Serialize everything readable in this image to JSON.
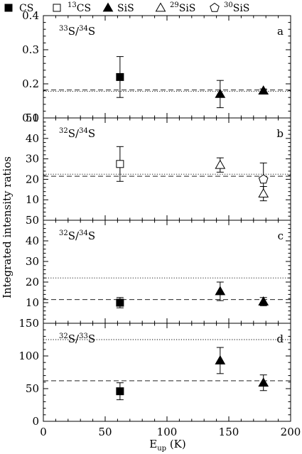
{
  "chart_data": [
    {
      "type": "scatter",
      "panel": "a",
      "label": "a",
      "ratio_num_mass": "33",
      "ratio_num_el": "S",
      "ratio_den_mass": "34",
      "ratio_den_el": "S",
      "xlim": [
        0,
        200
      ],
      "ylim": [
        0.1,
        0.4
      ],
      "yticks": [
        "0.1",
        "0.2",
        "0.3",
        "0.4"
      ],
      "reference_lines": [
        {
          "style": "dashed",
          "value": 0.182
        },
        {
          "style": "dotted",
          "value": 0.178
        }
      ],
      "points": [
        {
          "series": "CS",
          "x": 62,
          "y": 0.22,
          "err": 0.06
        },
        {
          "series": "SiS",
          "x": 143,
          "y": 0.17,
          "err": 0.04
        },
        {
          "series": "SiS",
          "x": 178,
          "y": 0.18,
          "err": 0.005
        }
      ]
    },
    {
      "type": "scatter",
      "panel": "b",
      "label": "b",
      "ratio_num_mass": "32",
      "ratio_num_el": "S",
      "ratio_den_mass": "34",
      "ratio_den_el": "S",
      "xlim": [
        0,
        200
      ],
      "ylim": [
        0,
        50
      ],
      "yticks": [
        "10",
        "20",
        "30",
        "40",
        "50"
      ],
      "reference_lines": [
        {
          "style": "dashed",
          "value": 21.5
        },
        {
          "style": "dotted",
          "value": 22.5
        }
      ],
      "points": [
        {
          "series": "13CS",
          "x": 62,
          "y": 27.5,
          "err": 8.5
        },
        {
          "series": "29SiS",
          "x": 143,
          "y": 27,
          "err": 3.5
        },
        {
          "series": "30SiS",
          "x": 178,
          "y": 20,
          "err": 8
        },
        {
          "series": "29SiS",
          "x": 178,
          "y": 13,
          "err": 3.5
        }
      ]
    },
    {
      "type": "scatter",
      "panel": "c",
      "label": "c",
      "ratio_num_mass": "32",
      "ratio_num_el": "S",
      "ratio_den_mass": "34",
      "ratio_den_el": "S",
      "xlim": [
        0,
        200
      ],
      "ylim": [
        0,
        50
      ],
      "yticks": [
        "10",
        "20",
        "30",
        "40",
        "50"
      ],
      "reference_lines": [
        {
          "style": "dashed",
          "value": 11.5
        },
        {
          "style": "dotted",
          "value": 22
        }
      ],
      "points": [
        {
          "series": "CS",
          "x": 62,
          "y": 10,
          "err": 2.5
        },
        {
          "series": "SiS",
          "x": 143,
          "y": 15.5,
          "err": 4.5
        },
        {
          "series": "SiS",
          "x": 178,
          "y": 10.5,
          "err": 2
        }
      ]
    },
    {
      "type": "scatter",
      "panel": "d",
      "label": "d",
      "ratio_num_mass": "32",
      "ratio_num_el": "S",
      "ratio_den_mass": "33",
      "ratio_den_el": "S",
      "xlim": [
        0,
        200
      ],
      "ylim": [
        0,
        150
      ],
      "yticks": [
        "0",
        "50",
        "100",
        "150"
      ],
      "xticks": [
        "0",
        "50",
        "100",
        "150",
        "200"
      ],
      "reference_lines": [
        {
          "style": "dashed",
          "value": 62
        },
        {
          "style": "dotted",
          "value": 125
        }
      ],
      "points": [
        {
          "series": "CS",
          "x": 62,
          "y": 46,
          "err": 13
        },
        {
          "series": "SiS",
          "x": 143,
          "y": 93,
          "err": 20
        },
        {
          "series": "SiS",
          "x": 178,
          "y": 59,
          "err": 12
        }
      ]
    }
  ],
  "legend": [
    {
      "symbol": "filled-square-icon",
      "mass": "",
      "name": "CS"
    },
    {
      "symbol": "open-square-icon",
      "mass": "13",
      "name": "CS"
    },
    {
      "symbol": "filled-triangle-icon",
      "mass": "",
      "name": "SiS"
    },
    {
      "symbol": "open-triangle-icon",
      "mass": "29",
      "name": "SiS"
    },
    {
      "symbol": "open-pentagon-icon",
      "mass": "30",
      "name": "SiS"
    }
  ],
  "axes": {
    "ylabel": "Integrated intensity ratios",
    "xlabel_main": "E",
    "xlabel_sub": "up",
    "xlabel_unit": " (K)"
  },
  "colors": {
    "ink": "#000000",
    "background": "#ffffff"
  }
}
